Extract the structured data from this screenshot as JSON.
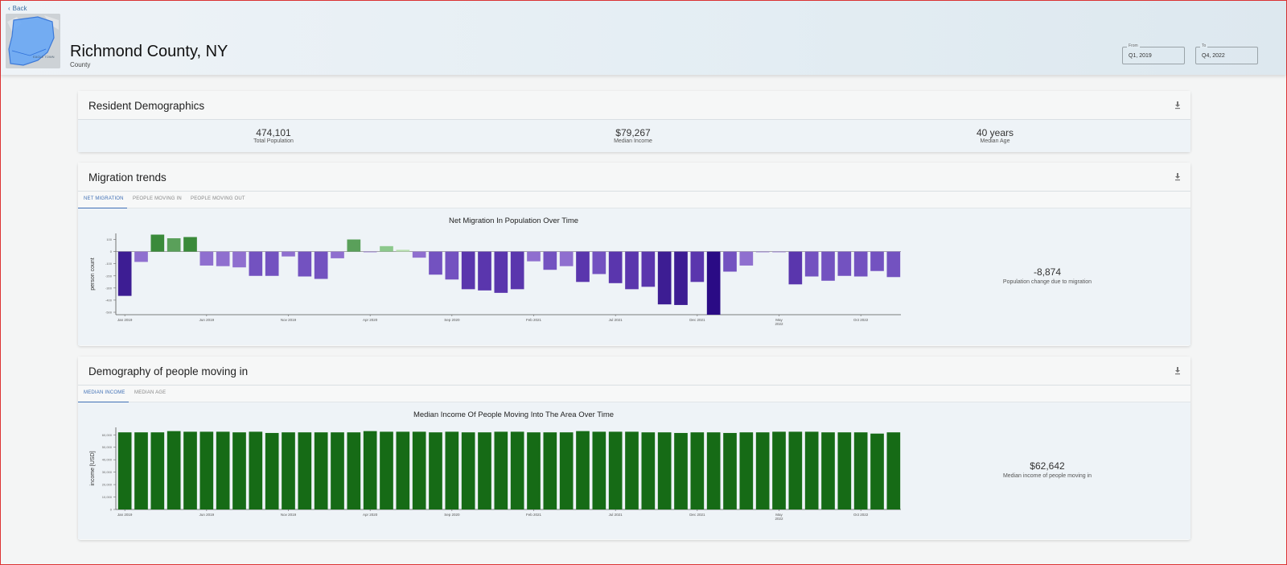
{
  "header": {
    "back_label": "Back",
    "place_name": "Richmond County, NY",
    "place_type": "County",
    "map_label": "EAGLE TOWN",
    "from_label": "From",
    "from_value": "Q1, 2019",
    "to_label": "To",
    "to_value": "Q4, 2022"
  },
  "demographics": {
    "title": "Resident Demographics",
    "stats": [
      {
        "value": "474,101",
        "label": "Total Population"
      },
      {
        "value": "$79,267",
        "label": "Median Income"
      },
      {
        "value": "40 years",
        "label": "Median Age"
      }
    ]
  },
  "migration": {
    "title": "Migration trends",
    "tabs": [
      "NET MIGRATION",
      "PEOPLE MOVING IN",
      "PEOPLE MOVING OUT"
    ],
    "active_tab": 0,
    "summary_value": "-8,874",
    "summary_label": "Population change due to migration"
  },
  "inbound": {
    "title": "Demography of people moving in",
    "tabs": [
      "MEDIAN INCOME",
      "MEDIAN AGE"
    ],
    "active_tab": 0,
    "summary_value": "$62,642",
    "summary_label": "Median income of people moving in"
  },
  "chart_data": [
    {
      "type": "bar",
      "title": "Net Migration In Population Over Time",
      "xlabel": "",
      "ylabel": "person count",
      "ylim": [
        -520,
        150
      ],
      "ytick_values": [
        100,
        0,
        -100,
        -200,
        -300,
        -400,
        -500
      ],
      "ytick_labels": [
        "100",
        "0",
        "-100",
        "-200",
        "-300",
        "-400",
        "-500"
      ],
      "xtick_labels": [
        {
          "index": 0,
          "label": "Jan 2019"
        },
        {
          "index": 5,
          "label": "Jun 2019"
        },
        {
          "index": 10,
          "label": "Nov 2019"
        },
        {
          "index": 15,
          "label": "Apr 2020"
        },
        {
          "index": 20,
          "label": "Sep 2020"
        },
        {
          "index": 25,
          "label": "Feb 2021"
        },
        {
          "index": 30,
          "label": "Jul 2021"
        },
        {
          "index": 35,
          "label": "Dec 2021"
        },
        {
          "index": 40,
          "label": "May 2022"
        },
        {
          "index": 45,
          "label": "Oct 2022"
        }
      ],
      "values": [
        -365,
        -85,
        140,
        110,
        120,
        -115,
        -120,
        -130,
        -200,
        -200,
        -40,
        -205,
        -225,
        -55,
        100,
        -5,
        45,
        15,
        -50,
        -190,
        -230,
        -310,
        -320,
        -340,
        -310,
        -80,
        -150,
        -120,
        -250,
        -185,
        -260,
        -310,
        -290,
        -435,
        -440,
        -250,
        -525,
        -165,
        -115,
        -5,
        -5,
        -270,
        -205,
        -240,
        -200,
        -205,
        -160,
        -210
      ],
      "positive_colors": [
        "#3a8a3a",
        "#5aa05a",
        "#8cc88c",
        "#b8e0b0"
      ],
      "negative_colors": [
        "#8f6fcf",
        "#7352c0",
        "#5a36ad",
        "#3d1d93",
        "#2a0b85"
      ]
    },
    {
      "type": "bar",
      "title": "Median Income Of People Moving Into The Area Over Time",
      "xlabel": "",
      "ylabel": "income [USD]",
      "ylim": [
        0,
        66000
      ],
      "ytick_values": [
        0,
        10000,
        20000,
        30000,
        40000,
        50000,
        60000
      ],
      "ytick_labels": [
        "0",
        "10,000",
        "20,000",
        "30,000",
        "40,000",
        "50,000",
        "60,000"
      ],
      "xtick_labels": [
        {
          "index": 0,
          "label": "Jan 2019"
        },
        {
          "index": 5,
          "label": "Jun 2019"
        },
        {
          "index": 10,
          "label": "Nov 2019"
        },
        {
          "index": 15,
          "label": "Apr 2020"
        },
        {
          "index": 20,
          "label": "Sep 2020"
        },
        {
          "index": 25,
          "label": "Feb 2021"
        },
        {
          "index": 30,
          "label": "Jul 2021"
        },
        {
          "index": 35,
          "label": "Dec 2021"
        },
        {
          "index": 40,
          "label": "May 2022"
        },
        {
          "index": 45,
          "label": "Oct 2022"
        }
      ],
      "values": [
        62000,
        62000,
        62000,
        63000,
        62500,
        62500,
        62500,
        62000,
        62500,
        61500,
        62000,
        62000,
        62000,
        62000,
        62000,
        63000,
        62500,
        62500,
        62500,
        62000,
        62500,
        62000,
        62000,
        62500,
        62500,
        62000,
        62000,
        62000,
        63000,
        62500,
        62500,
        62500,
        62000,
        62000,
        61500,
        62000,
        62000,
        61500,
        62000,
        62000,
        62500,
        62500,
        62500,
        62000,
        62000,
        62000,
        61000,
        62000
      ],
      "bar_color": "#166b16"
    }
  ]
}
